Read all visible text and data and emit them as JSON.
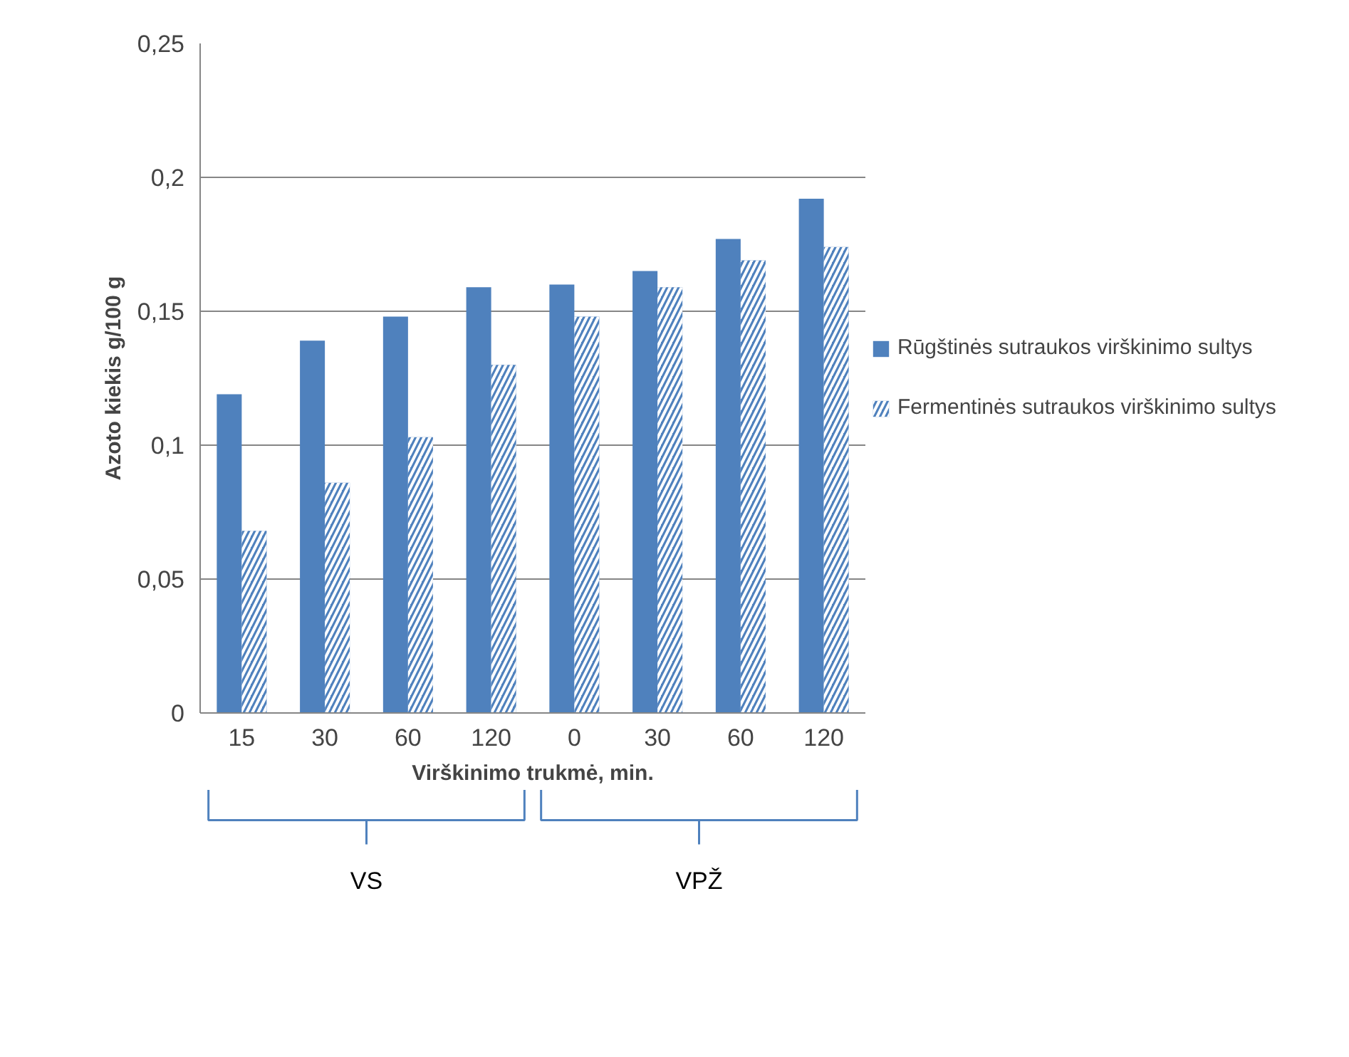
{
  "chart_data": {
    "type": "bar",
    "categories": [
      "15",
      "30",
      "60",
      "120",
      "0",
      "30",
      "60",
      "120"
    ],
    "series": [
      {
        "name": "Rūgštinės sutraukos virškinimo sultys",
        "color": "#4f81bd",
        "values": [
          0.119,
          0.139,
          0.148,
          0.159,
          0.16,
          0.165,
          0.177,
          0.192
        ]
      },
      {
        "name": "Fermentinės sutraukos virškinimo sultys",
        "color": "#4f81bd",
        "values": [
          0.068,
          0.086,
          0.103,
          0.13,
          0.148,
          0.159,
          0.169,
          0.174
        ]
      }
    ],
    "xlabel": "Virškinimo trukmė, min.",
    "ylabel": "Azoto kiekis g/100 g",
    "annotations": [
      "VS",
      "VPŽ"
    ],
    "ylim": [
      0,
      0.25
    ],
    "yticks": [
      {
        "value": 0,
        "label": "0"
      },
      {
        "value": 0.05,
        "label": "0,05"
      },
      {
        "value": 0.1,
        "label": "0,1"
      },
      {
        "value": 0.15,
        "label": "0,15"
      },
      {
        "value": 0.2,
        "label": "0,2"
      },
      {
        "value": 0.25,
        "label": "0,25"
      }
    ],
    "grid": "y",
    "legend": "right"
  }
}
